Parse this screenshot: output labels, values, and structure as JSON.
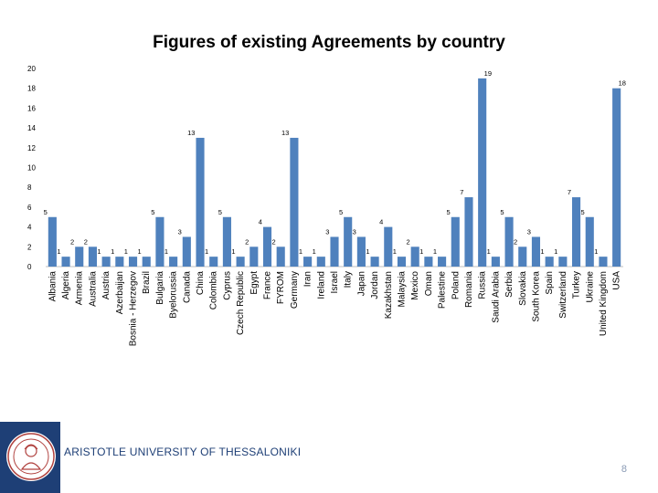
{
  "chart_data": {
    "type": "bar",
    "title": "Figures of existing Agreements by country",
    "xlabel": "",
    "ylabel": "",
    "ylim": [
      0,
      20
    ],
    "yticks": [
      0,
      2,
      4,
      6,
      8,
      10,
      12,
      14,
      16,
      18,
      20
    ],
    "grid": false,
    "legend": "none",
    "categories": [
      "Albania",
      "Algeria",
      "Armenia",
      "Australia",
      "Austria",
      "Azerbaijan",
      "Bosnia - Herzegov",
      "Brazil",
      "Bulgaria",
      "Byelorussia",
      "Canada",
      "China",
      "Colombia",
      "Cyprus",
      "Czech Republic",
      "Egypt",
      "France",
      "FYROM",
      "Germany",
      "Iran",
      "Ireland",
      "Israel",
      "Italy",
      "Japan",
      "Jordan",
      "Kazakhstan",
      "Malaysia",
      "Mexico",
      "Oman",
      "Palestine",
      "Poland",
      "Romania",
      "Russia",
      "Saudi Arabia",
      "Serbia",
      "Slovakia",
      "South Korea",
      "Spain",
      "Switzerland",
      "Turkey",
      "Ukraine",
      "United Kingdom",
      "USA"
    ],
    "values": [
      5,
      1,
      2,
      2,
      1,
      1,
      1,
      1,
      5,
      1,
      3,
      13,
      1,
      5,
      1,
      2,
      4,
      2,
      13,
      1,
      1,
      3,
      5,
      3,
      1,
      4,
      1,
      2,
      1,
      1,
      5,
      7,
      19,
      1,
      5,
      2,
      3,
      1,
      1,
      7,
      5,
      1,
      18
    ]
  },
  "colors": {
    "bar": "#4f81bd",
    "footer": "#1e3f76",
    "institution_text": "#1e3f76",
    "page_number": "#8a9bb5"
  },
  "footer": {
    "institution": "ARISTOTLE UNIVERSITY OF THESSALONIKI",
    "page_number": "8",
    "logo_icon": "university-seal-icon"
  }
}
